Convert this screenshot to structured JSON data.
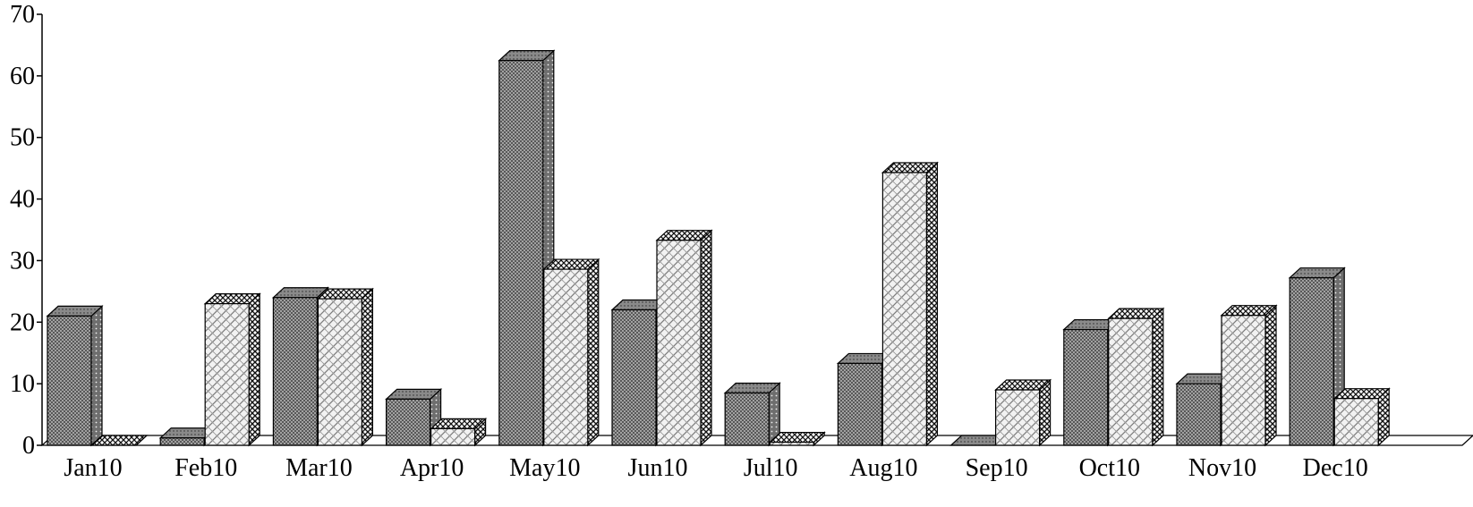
{
  "chart_data": {
    "type": "bar",
    "title": "",
    "xlabel": "",
    "ylabel": "",
    "ylim": [
      0,
      70
    ],
    "yticks": [
      0,
      10,
      20,
      30,
      40,
      50,
      60,
      70
    ],
    "grid": false,
    "legend": "none",
    "style": "3d-clustered",
    "categories": [
      "Jan10",
      "Feb10",
      "Mar10",
      "Apr10",
      "May10",
      "Jun10",
      "Jul10",
      "Aug10",
      "Sep10",
      "Oct10",
      "Nov10",
      "Dec10"
    ],
    "series": [
      {
        "values": [
          21,
          1.2,
          24,
          7.5,
          62.5,
          22,
          8.5,
          13.3,
          0,
          18.8,
          10,
          27.2
        ],
        "pattern": "dark-crosshatch",
        "color": "#9a9a9a"
      },
      {
        "values": [
          0,
          23,
          23.8,
          2.7,
          28.6,
          33.3,
          0.5,
          44.3,
          9,
          20.6,
          21.1,
          7.6
        ],
        "pattern": "light-weave",
        "color": "#e6e6e6"
      }
    ]
  }
}
